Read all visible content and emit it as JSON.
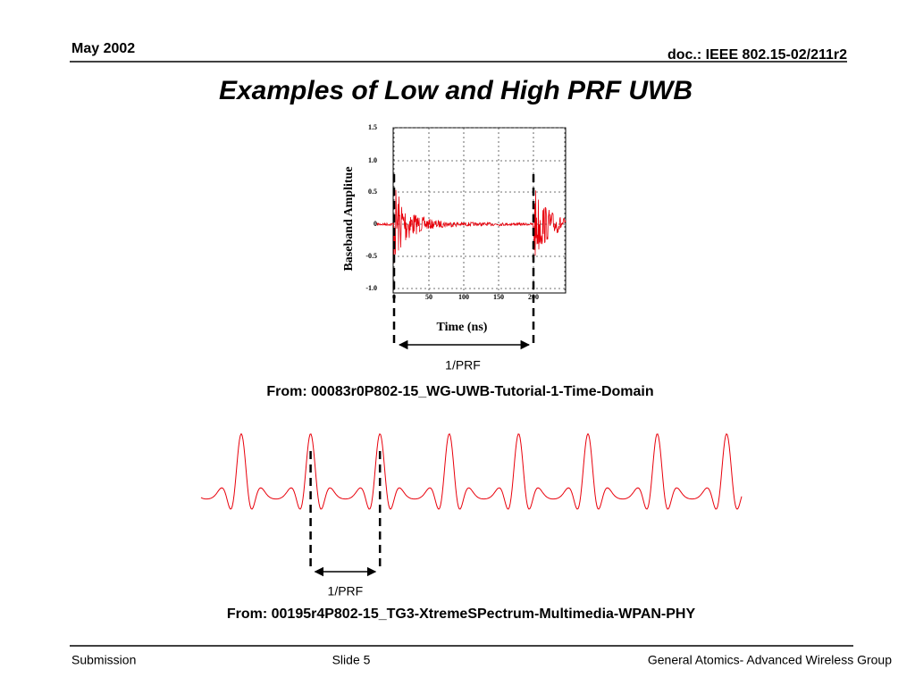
{
  "header": {
    "date": "May 2002",
    "doc": "doc.: IEEE 802.15-02/211r2"
  },
  "title": "Examples of Low and High PRF UWB",
  "plot1": {
    "y_label": "Baseband Amplitue",
    "x_label": "Time (ns)",
    "yticks": [
      "1.5",
      "1.0",
      "0.5",
      "0",
      "-0.5",
      "-1.0"
    ],
    "xticks": [
      "0",
      "50",
      "100",
      "150",
      "200"
    ],
    "interval_label": "1/PRF",
    "source": "From: 00083r0P802-15_WG-UWB-Tutorial-1-Time-Domain"
  },
  "plot2": {
    "interval_label": "1/PRF",
    "source": "From: 00195r4P802-15_TG3-XtremeSPectrum-Multimedia-WPAN-PHY"
  },
  "footer": {
    "left": "Submission",
    "center": "Slide 5",
    "right": "General Atomics- Advanced Wireless Group"
  }
}
